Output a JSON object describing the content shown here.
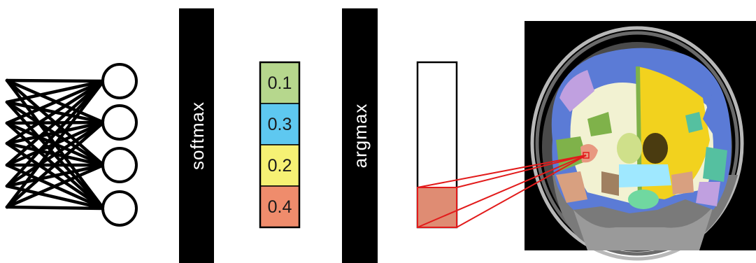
{
  "operations": {
    "softmax_label": "softmax",
    "argmax_label": "argmax"
  },
  "probabilities": [
    {
      "label": "0.1",
      "color": "#b6d78d"
    },
    {
      "label": "0.3",
      "color": "#5ec8f0"
    },
    {
      "label": "0.2",
      "color": "#f6f174"
    },
    {
      "label": "0.4",
      "color": "#ef8c6c"
    }
  ],
  "argmax_output": {
    "selected_index": 3,
    "selected_color": "#df8c73",
    "link_color": "#e21b1b"
  },
  "network": {
    "input_count": 7,
    "output_count": 4
  },
  "segmentation_palette": [
    "#5b7bd6",
    "#f2f2d2",
    "#f2d21e",
    "#7fb24a",
    "#c0a0e0",
    "#d8a080",
    "#9fe8ff",
    "#cfe08a",
    "#4a3b10",
    "#e89880",
    "#55c0a0",
    "#a08060",
    "#70d8a0"
  ]
}
